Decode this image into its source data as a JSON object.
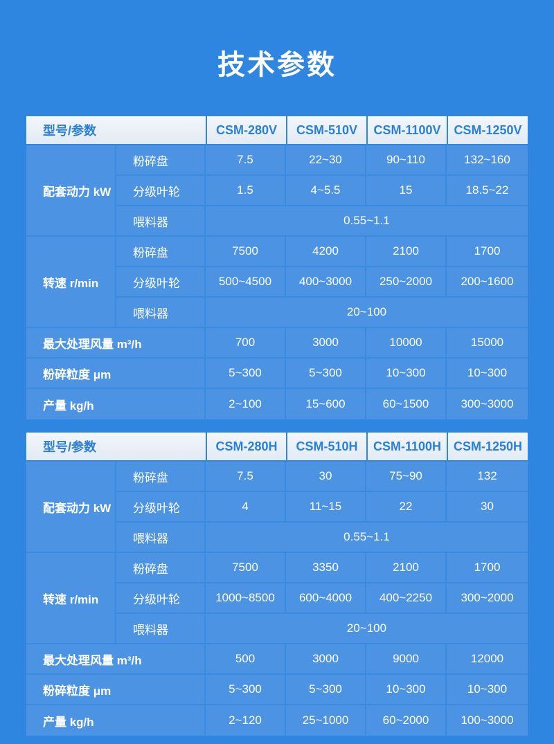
{
  "page": {
    "title": "技术参数"
  },
  "colors": {
    "page_bg": "#2f86e0",
    "cell_bg": "#4c93e4",
    "grid_line": "#3a8ae0",
    "header_text": "#2a7fd6",
    "header_bg_top": "#f3f7fb",
    "header_bg_bottom": "#e2eaf4",
    "title_color": "#ffffff",
    "cell_text": "#ffffff"
  },
  "tables": [
    {
      "header": [
        "型号/参数",
        "CSM-280V",
        "CSM-510V",
        "CSM-1100V",
        "CSM-1250V"
      ],
      "groups": [
        {
          "label": "配套动力 kW",
          "rows": [
            {
              "sublabel": "粉碎盘",
              "values": [
                "7.5",
                "22~30",
                "90~110",
                "132~160"
              ]
            },
            {
              "sublabel": "分级叶轮",
              "values": [
                "1.5",
                "4~5.5",
                "15",
                "18.5~22"
              ]
            },
            {
              "sublabel": "喂料器",
              "span_value": "0.55~1.1"
            }
          ]
        },
        {
          "label": "转速 r/min",
          "rows": [
            {
              "sublabel": "粉碎盘",
              "values": [
                "7500",
                "4200",
                "2100",
                "1700"
              ]
            },
            {
              "sublabel": "分级叶轮",
              "values": [
                "500~4500",
                "400~3000",
                "250~2000",
                "200~1600"
              ]
            },
            {
              "sublabel": "喂料器",
              "span_value": "20~100"
            }
          ]
        }
      ],
      "rows": [
        {
          "label": "最大处理风量 m³/h",
          "values": [
            "700",
            "3000",
            "10000",
            "15000"
          ]
        },
        {
          "label": "粉碎粒度 μm",
          "values": [
            "5~300",
            "5~300",
            "10~300",
            "10~300"
          ]
        },
        {
          "label": "产量 kg/h",
          "values": [
            "2~100",
            "15~600",
            "60~1500",
            "300~3000"
          ]
        }
      ]
    },
    {
      "header": [
        "型号/参数",
        "CSM-280H",
        "CSM-510H",
        "CSM-1100H",
        "CSM-1250H"
      ],
      "groups": [
        {
          "label": "配套动力 kW",
          "rows": [
            {
              "sublabel": "粉碎盘",
              "values": [
                "7.5",
                "30",
                "75~90",
                "132"
              ]
            },
            {
              "sublabel": "分级叶轮",
              "values": [
                "4",
                "11~15",
                "22",
                "30"
              ]
            },
            {
              "sublabel": "喂料器",
              "span_value": "0.55~1.1"
            }
          ]
        },
        {
          "label": "转速 r/min",
          "rows": [
            {
              "sublabel": "粉碎盘",
              "values": [
                "7500",
                "3350",
                "2100",
                "1700"
              ]
            },
            {
              "sublabel": "分级叶轮",
              "values": [
                "1000~8500",
                "600~4000",
                "400~2250",
                "300~2000"
              ]
            },
            {
              "sublabel": "喂料器",
              "span_value": "20~100"
            }
          ]
        }
      ],
      "rows": [
        {
          "label": "最大处理风量 m³/h",
          "values": [
            "500",
            "3000",
            "9000",
            "12000"
          ]
        },
        {
          "label": "粉碎粒度 μm",
          "values": [
            "5~300",
            "5~300",
            "10~300",
            "10~300"
          ]
        },
        {
          "label": "产量 kg/h",
          "values": [
            "2~120",
            "25~1000",
            "60~2000",
            "100~3000"
          ]
        }
      ]
    }
  ]
}
